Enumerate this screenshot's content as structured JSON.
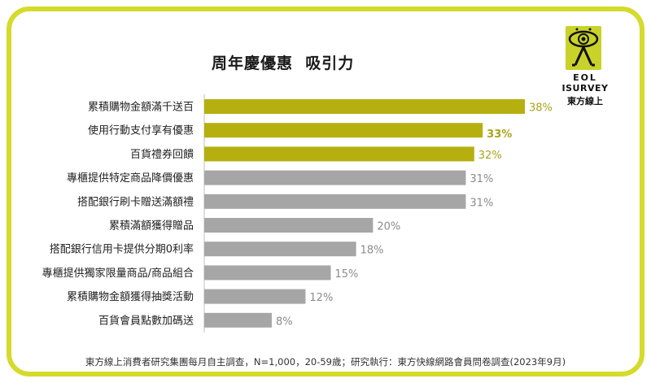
{
  "title": "周年慶優惠  吸引力",
  "logo": {
    "line1": "EOL",
    "line2": "ISURVEY",
    "line3": "東方線上"
  },
  "footnote": "東方線上消費者研究集團每月自主調查，N=1,000，20-59歲；研究執行：東方快線網路會員問卷調查(2023年9月)",
  "colors": {
    "frame": "#d4db2b",
    "highlight_bar": "#b5b00f",
    "normal_bar": "#a6a6a6",
    "highlight_label": "#a8a418",
    "normal_label": "#8c8c8c"
  },
  "chart_data": {
    "type": "bar",
    "orientation": "horizontal",
    "title": "周年慶優惠  吸引力",
    "unit": "%",
    "categories": [
      "累積購物金額滿千送百",
      "使用行動支付享有優惠",
      "百貨禮券回饋",
      "專櫃提供特定商品降價優惠",
      "搭配銀行刷卡贈送滿額禮",
      "累積滿額獲得贈品",
      "搭配銀行信用卡提供分期0利率",
      "專櫃提供獨家限量商品/商品組合",
      "累積購物金額獲得抽獎活動",
      "百貨會員點數加碼送"
    ],
    "values": [
      38,
      33,
      32,
      31,
      31,
      20,
      18,
      15,
      12,
      8
    ],
    "labels": [
      "38%",
      "33%",
      "32%",
      "31%",
      "31%",
      "20%",
      "18%",
      "15%",
      "12%",
      "8%"
    ],
    "highlighted": [
      true,
      true,
      true,
      false,
      false,
      false,
      false,
      false,
      false,
      false
    ],
    "emphasized_label_index": 1,
    "xlim": [
      0,
      38
    ]
  }
}
